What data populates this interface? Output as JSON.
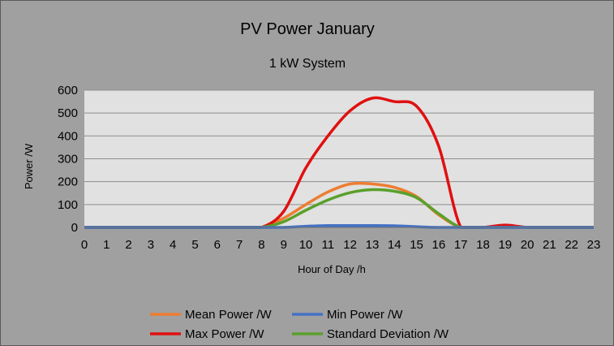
{
  "chart_data": {
    "type": "line",
    "title": "PV Power January",
    "subtitle": "1 kW System",
    "xlabel": "Hour of Day /h",
    "ylabel": "Power /W",
    "xlim": [
      0,
      23
    ],
    "ylim": [
      0,
      600
    ],
    "yticks": [
      0,
      100,
      200,
      300,
      400,
      500,
      600
    ],
    "xticks": [
      0,
      1,
      2,
      3,
      4,
      5,
      6,
      7,
      8,
      9,
      10,
      11,
      12,
      13,
      14,
      15,
      16,
      17,
      18,
      19,
      20,
      21,
      22,
      23
    ],
    "grid": "horizontal",
    "legend_position": "bottom",
    "plot_background": "#e1e1e1",
    "chart_background": "#a0a0a0",
    "x": [
      0,
      1,
      2,
      3,
      4,
      5,
      6,
      7,
      8,
      9,
      10,
      11,
      12,
      13,
      14,
      15,
      16,
      17,
      18,
      19,
      20,
      21,
      22,
      23
    ],
    "series": [
      {
        "name": "Mean Power /W",
        "color": "#ed7d31",
        "values": [
          0,
          0,
          0,
          0,
          0,
          0,
          0,
          0,
          0,
          40,
          100,
          155,
          190,
          190,
          175,
          135,
          55,
          0,
          0,
          0,
          0,
          0,
          0,
          0
        ]
      },
      {
        "name": "Min Power /W",
        "color": "#4472c4",
        "values": [
          0,
          0,
          0,
          0,
          0,
          0,
          0,
          0,
          0,
          0,
          5,
          8,
          8,
          8,
          7,
          3,
          0,
          0,
          0,
          0,
          0,
          0,
          0,
          0
        ]
      },
      {
        "name": "Max Power /W",
        "color": "#e01010",
        "values": [
          0,
          0,
          0,
          0,
          0,
          0,
          0,
          0,
          0,
          70,
          260,
          400,
          510,
          565,
          550,
          530,
          355,
          0,
          0,
          10,
          0,
          0,
          0,
          0
        ]
      },
      {
        "name": "Standard Deviation /W",
        "color": "#5aa02c",
        "values": [
          0,
          0,
          0,
          0,
          0,
          0,
          0,
          0,
          0,
          25,
          75,
          120,
          152,
          165,
          158,
          130,
          60,
          0,
          0,
          0,
          0,
          0,
          0,
          0
        ]
      }
    ]
  }
}
